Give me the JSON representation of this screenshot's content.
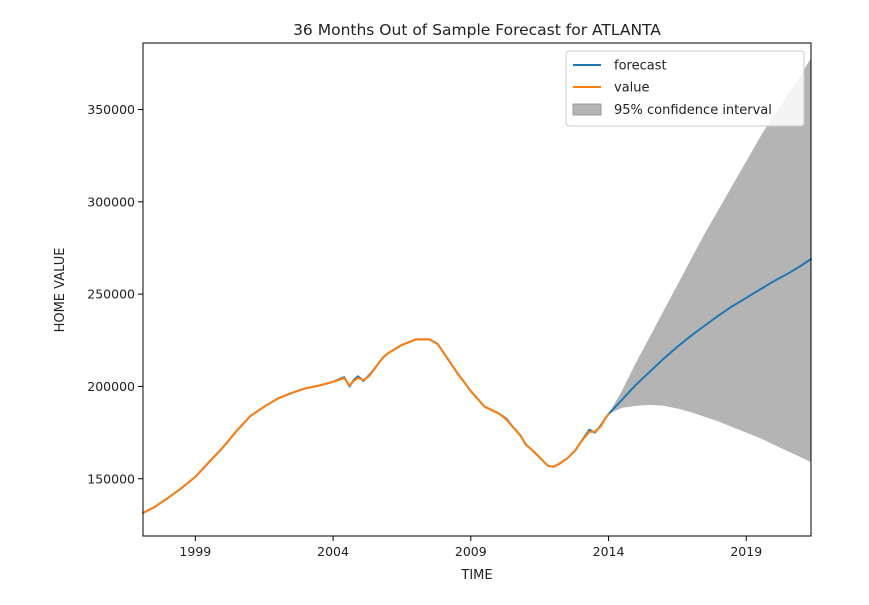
{
  "chart_data": {
    "type": "line",
    "title": "36 Months Out of Sample Forecast for ATLANTA",
    "xlabel": "TIME",
    "ylabel": "HOME VALUE",
    "xlim": [
      1997.1,
      2021.35
    ],
    "ylim": [
      119000,
      386000
    ],
    "xticks": [
      1999,
      2004,
      2009,
      2014,
      2019
    ],
    "xtick_labels": [
      "1999",
      "2004",
      "2009",
      "2014",
      "2019"
    ],
    "yticks": [
      150000,
      200000,
      250000,
      300000,
      350000
    ],
    "ytick_labels": [
      "150000",
      "200000",
      "250000",
      "300000",
      "350000"
    ],
    "grid": false,
    "legend": {
      "position": "top-right",
      "entries": [
        "forecast",
        "value",
        "95% confidence interval"
      ]
    },
    "colors": {
      "forecast": "#1f77b4",
      "value": "#ff7f0e",
      "confidence_interval": "#8c8c8c"
    },
    "series": [
      {
        "name": "value",
        "x": [
          1997.1,
          1997.5,
          1998.0,
          1998.5,
          1999.0,
          1999.5,
          2000.0,
          2000.5,
          2001.0,
          2001.5,
          2002.0,
          2002.5,
          2003.0,
          2003.5,
          2004.0,
          2004.4,
          2004.6,
          2004.75,
          2004.9,
          2005.1,
          2005.3,
          2005.5,
          2005.8,
          2006.0,
          2006.5,
          2007.0,
          2007.5,
          2007.8,
          2008.0,
          2008.5,
          2008.8,
          2009.0,
          2009.5,
          2010.0,
          2010.3,
          2010.5,
          2010.8,
          2011.0,
          2011.3,
          2011.6,
          2011.8,
          2012.0,
          2012.2,
          2012.5,
          2012.8,
          2013.0,
          2013.3,
          2013.5,
          2013.7,
          2013.9,
          2014.0
        ],
        "y": [
          131500,
          134500,
          139500,
          145000,
          151000,
          159000,
          167000,
          176000,
          184000,
          189000,
          193500,
          196500,
          199000,
          200500,
          202500,
          204500,
          200500,
          203000,
          204500,
          203500,
          205500,
          209500,
          215500,
          218000,
          222500,
          225500,
          225500,
          223000,
          218500,
          207500,
          201500,
          197500,
          189000,
          185500,
          182000,
          178500,
          173500,
          168500,
          164500,
          160000,
          157000,
          156500,
          158000,
          161000,
          165500,
          170000,
          175500,
          175500,
          178000,
          183000,
          185000
        ]
      },
      {
        "name": "forecast",
        "x": [
          1997.1,
          1997.5,
          1998.0,
          1998.5,
          1999.0,
          1999.5,
          2000.0,
          2000.5,
          2001.0,
          2001.5,
          2002.0,
          2002.5,
          2003.0,
          2003.5,
          2004.0,
          2004.4,
          2004.6,
          2004.75,
          2004.9,
          2005.1,
          2005.3,
          2005.5,
          2005.8,
          2006.0,
          2006.5,
          2007.0,
          2007.5,
          2007.8,
          2008.0,
          2008.5,
          2008.8,
          2009.0,
          2009.5,
          2010.0,
          2010.3,
          2010.5,
          2010.8,
          2011.0,
          2011.3,
          2011.6,
          2011.8,
          2012.0,
          2012.2,
          2012.5,
          2012.8,
          2013.0,
          2013.3,
          2013.5,
          2013.7,
          2013.9,
          2014.0,
          2014.5,
          2015.0,
          2015.5,
          2016.0,
          2016.5,
          2017.0,
          2017.5,
          2018.0,
          2018.5,
          2019.0,
          2019.5,
          2020.0,
          2020.5,
          2021.0,
          2021.35
        ],
        "y": [
          131500,
          134500,
          139500,
          145000,
          151000,
          159000,
          167000,
          176000,
          184000,
          189000,
          193500,
          196500,
          199000,
          200500,
          202500,
          205000,
          200000,
          203500,
          205500,
          203000,
          206000,
          209500,
          215500,
          218000,
          222500,
          225500,
          225500,
          223000,
          218500,
          207500,
          201500,
          197500,
          189000,
          185500,
          182500,
          178500,
          173500,
          168500,
          164500,
          160000,
          157000,
          156500,
          158000,
          161000,
          165500,
          170000,
          176500,
          175000,
          178500,
          183000,
          185000,
          193000,
          201000,
          208000,
          215000,
          221500,
          227500,
          233000,
          238500,
          243500,
          248000,
          252500,
          257000,
          261000,
          265500,
          269000
        ]
      }
    ],
    "confidence_interval": {
      "name": "95% confidence interval",
      "x": [
        2014.0,
        2014.5,
        2015.0,
        2015.5,
        2016.0,
        2016.5,
        2017.0,
        2017.5,
        2018.0,
        2018.5,
        2019.0,
        2019.5,
        2020.0,
        2020.5,
        2021.0,
        2021.35
      ],
      "lower": [
        185000,
        188500,
        189500,
        190000,
        189500,
        188000,
        186000,
        183500,
        181000,
        178000,
        175000,
        172000,
        168500,
        165000,
        161500,
        159000
      ],
      "upper": [
        185000,
        198000,
        213000,
        227000,
        241000,
        255000,
        269000,
        283000,
        296000,
        309000,
        322000,
        335000,
        347000,
        358000,
        369000,
        378000
      ]
    }
  }
}
